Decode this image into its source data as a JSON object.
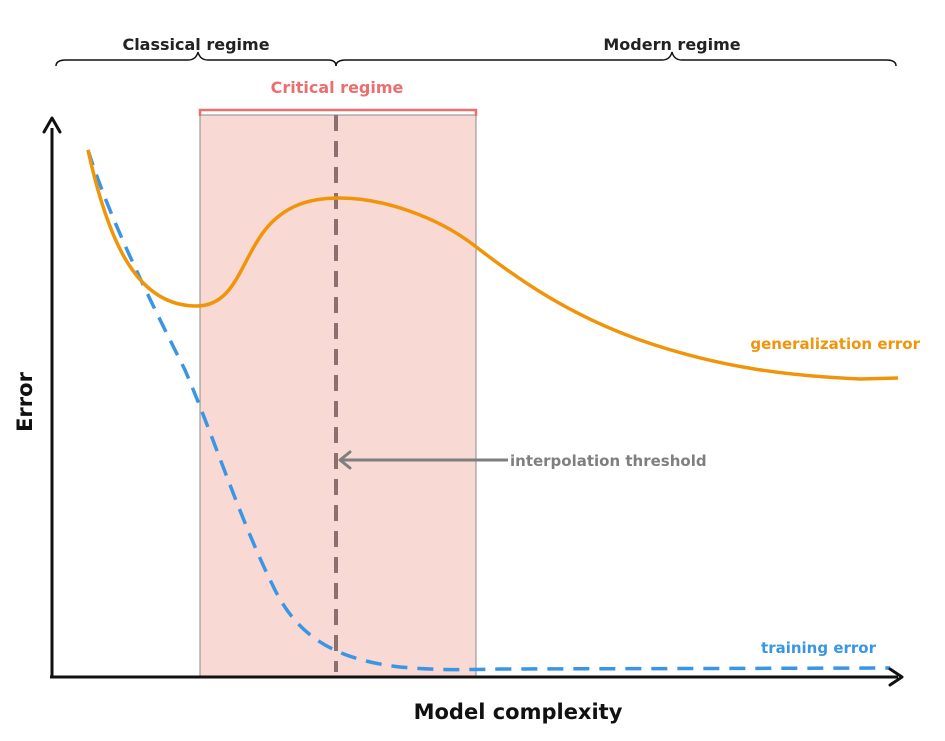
{
  "regimes": {
    "classical": "Classical regime",
    "modern": "Modern regime",
    "critical": "Critical regime"
  },
  "axes": {
    "xlabel": "Model complexity",
    "ylabel": "Error"
  },
  "curves": {
    "generalization": {
      "label": "generalization error",
      "color": "#f0940a"
    },
    "training": {
      "label": "training error",
      "color": "#3a95e4"
    }
  },
  "annotations": {
    "threshold": "interpolation threshold"
  },
  "colors": {
    "critical_label": "#ec6f6f",
    "critical_fill": "#f9d9d3",
    "threshold_line": "#8c6f6f",
    "annotation": "#7f7f7f",
    "axis": "#111111"
  }
}
